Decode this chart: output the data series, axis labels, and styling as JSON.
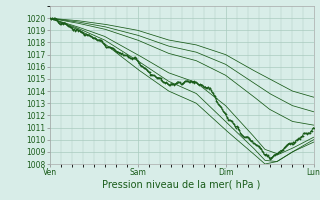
{
  "title": "",
  "xlabel": "Pression niveau de la mer( hPa )",
  "background_color": "#d8ede8",
  "grid_color": "#aacbbf",
  "line_color": "#1a5c1a",
  "ylim": [
    1008,
    1021
  ],
  "yticks": [
    1008,
    1009,
    1010,
    1011,
    1012,
    1013,
    1014,
    1015,
    1016,
    1017,
    1018,
    1019,
    1020
  ],
  "xtick_labels": [
    "Ven",
    "Sam",
    "Dim",
    "Lun"
  ],
  "xtick_positions": [
    0,
    96,
    192,
    288
  ],
  "total_points": 289,
  "xlabel_fontsize": 7,
  "tick_fontsize": 5.5,
  "line_width": 0.7,
  "marker_size": 2.0,
  "main_wx": [
    0,
    15,
    30,
    50,
    70,
    96,
    115,
    130,
    150,
    160,
    175,
    192,
    210,
    220,
    230,
    240,
    250,
    260,
    270,
    280,
    288
  ],
  "main_wy": [
    1020.0,
    1019.5,
    1019.0,
    1018.3,
    1017.4,
    1016.5,
    1015.2,
    1014.6,
    1014.8,
    1014.7,
    1014.2,
    1012.0,
    1010.5,
    1010.0,
    1009.3,
    1008.5,
    1009.0,
    1009.5,
    1010.0,
    1010.5,
    1010.8
  ],
  "upper3_wx": [
    0,
    30,
    60,
    96,
    130,
    160,
    192,
    220,
    240,
    265,
    288
  ],
  "upper3_wy": [
    1020.0,
    1019.8,
    1019.5,
    1019.0,
    1018.2,
    1017.8,
    1017.0,
    1015.8,
    1015.0,
    1014.0,
    1013.5
  ],
  "upper2_wx": [
    0,
    30,
    60,
    96,
    130,
    160,
    192,
    220,
    240,
    265,
    288
  ],
  "upper2_wy": [
    1020.0,
    1019.7,
    1019.3,
    1018.6,
    1017.7,
    1017.2,
    1016.2,
    1014.8,
    1013.8,
    1012.8,
    1012.3
  ],
  "upper1_wx": [
    0,
    30,
    60,
    96,
    130,
    160,
    192,
    220,
    240,
    265,
    288
  ],
  "upper1_wy": [
    1020.0,
    1019.6,
    1019.1,
    1018.2,
    1017.1,
    1016.5,
    1015.3,
    1013.7,
    1012.5,
    1011.5,
    1011.2
  ],
  "lower1_wx": [
    0,
    30,
    60,
    96,
    130,
    160,
    192,
    220,
    235,
    250,
    265,
    288
  ],
  "lower1_wy": [
    1020.0,
    1019.3,
    1018.5,
    1017.0,
    1015.5,
    1014.7,
    1012.8,
    1010.5,
    1009.2,
    1008.8,
    1009.3,
    1010.2
  ],
  "lower2_wx": [
    0,
    30,
    60,
    96,
    130,
    160,
    192,
    220,
    235,
    248,
    265,
    288
  ],
  "lower2_wy": [
    1020.0,
    1019.2,
    1018.2,
    1016.5,
    1014.8,
    1013.8,
    1011.5,
    1009.5,
    1008.3,
    1008.2,
    1009.0,
    1010.0
  ],
  "lower3_wx": [
    0,
    30,
    60,
    96,
    130,
    160,
    192,
    220,
    235,
    248,
    265,
    288
  ],
  "lower3_wy": [
    1020.0,
    1019.1,
    1017.9,
    1015.8,
    1014.0,
    1013.0,
    1010.8,
    1009.0,
    1008.0,
    1008.2,
    1009.0,
    1009.8
  ]
}
